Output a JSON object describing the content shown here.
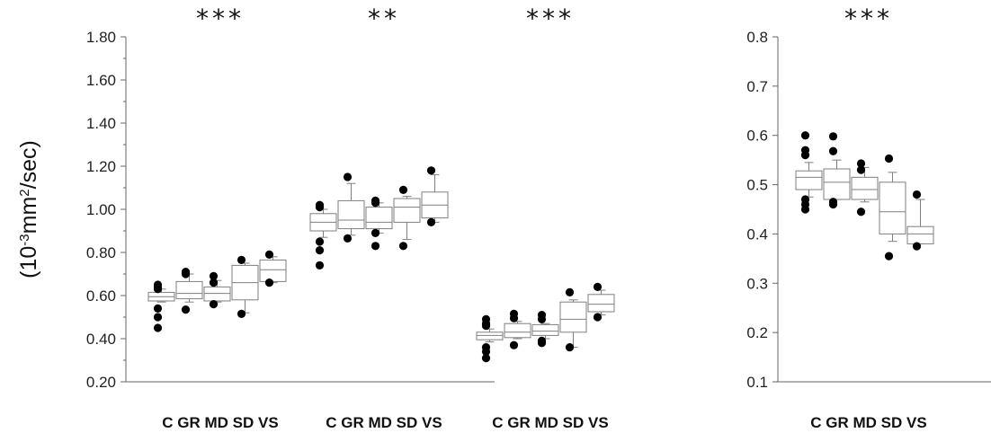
{
  "chart_data": [
    {
      "type": "box",
      "ylabel_parts": [
        "(10",
        "-3",
        "mm",
        "2",
        "/sec)"
      ],
      "ylim": [
        0.2,
        1.8
      ],
      "yticks": [
        "0.20",
        "0.40",
        "0.60",
        "0.80",
        "1.00",
        "1.20",
        "1.40",
        "1.60",
        "1.80"
      ],
      "groups": [
        {
          "label": "C GR MD SD VS",
          "significance": "***",
          "boxes": [
            {
              "min": 0.57,
              "q1": 0.575,
              "median": 0.595,
              "q3": 0.615,
              "max": 0.63,
              "outliers": [
                0.65,
                0.64,
                0.63,
                0.54,
                0.5,
                0.45
              ]
            },
            {
              "min": 0.57,
              "q1": 0.585,
              "median": 0.61,
              "q3": 0.665,
              "max": 0.7,
              "outliers": [
                0.71,
                0.7,
                0.535
              ]
            },
            {
              "min": 0.57,
              "q1": 0.575,
              "median": 0.61,
              "q3": 0.64,
              "max": 0.67,
              "outliers": [
                0.69,
                0.66,
                0.56
              ]
            },
            {
              "min": 0.52,
              "q1": 0.58,
              "median": 0.66,
              "q3": 0.74,
              "max": 0.75,
              "outliers": [
                0.765,
                0.515
              ]
            },
            {
              "min": 0.66,
              "q1": 0.665,
              "median": 0.72,
              "q3": 0.765,
              "max": 0.78,
              "outliers": [
                0.79,
                0.66
              ]
            }
          ]
        },
        {
          "label": "C GR MD SD VS",
          "significance": "**",
          "boxes": [
            {
              "min": 0.87,
              "q1": 0.9,
              "median": 0.94,
              "q3": 0.98,
              "max": 1.0,
              "outliers": [
                1.02,
                1.01,
                0.85,
                0.81,
                0.74
              ]
            },
            {
              "min": 0.88,
              "q1": 0.91,
              "median": 0.95,
              "q3": 1.04,
              "max": 1.12,
              "outliers": [
                1.15,
                0.865
              ]
            },
            {
              "min": 0.89,
              "q1": 0.91,
              "median": 0.94,
              "q3": 1.01,
              "max": 1.03,
              "outliers": [
                1.04,
                1.03,
                0.89,
                0.83
              ]
            },
            {
              "min": 0.86,
              "q1": 0.94,
              "median": 1.01,
              "q3": 1.05,
              "max": 1.06,
              "outliers": [
                1.09,
                0.83
              ]
            },
            {
              "min": 0.94,
              "q1": 0.96,
              "median": 1.02,
              "q3": 1.08,
              "max": 1.16,
              "outliers": [
                1.18,
                0.94
              ]
            }
          ]
        },
        {
          "label": "C GR MD SD VS",
          "significance": "***",
          "boxes": [
            {
              "min": 0.385,
              "q1": 0.395,
              "median": 0.415,
              "q3": 0.43,
              "max": 0.445,
              "outliers": [
                0.49,
                0.47,
                0.46,
                0.36,
                0.34,
                0.31
              ]
            },
            {
              "min": 0.4,
              "q1": 0.405,
              "median": 0.43,
              "q3": 0.47,
              "max": 0.48,
              "outliers": [
                0.515,
                0.495,
                0.37
              ]
            },
            {
              "min": 0.4,
              "q1": 0.415,
              "median": 0.435,
              "q3": 0.465,
              "max": 0.47,
              "outliers": [
                0.51,
                0.49,
                0.39,
                0.38
              ]
            },
            {
              "min": 0.36,
              "q1": 0.43,
              "median": 0.49,
              "q3": 0.57,
              "max": 0.58,
              "outliers": [
                0.615,
                0.36
              ]
            },
            {
              "min": 0.51,
              "q1": 0.525,
              "median": 0.56,
              "q3": 0.605,
              "max": 0.625,
              "outliers": [
                0.64,
                0.5
              ]
            }
          ]
        }
      ]
    },
    {
      "type": "box",
      "ylim": [
        0.1,
        0.8
      ],
      "yticks": [
        "0.1",
        "0.2",
        "0.3",
        "0.4",
        "0.5",
        "0.6",
        "0.7",
        "0.8"
      ],
      "groups": [
        {
          "label": "C  GR MD SD VS",
          "significance": "***",
          "boxes": [
            {
              "min": 0.475,
              "q1": 0.49,
              "median": 0.515,
              "q3": 0.528,
              "max": 0.545,
              "outliers": [
                0.6,
                0.57,
                0.56,
                0.47,
                0.46,
                0.45
              ]
            },
            {
              "min": 0.47,
              "q1": 0.47,
              "median": 0.505,
              "q3": 0.532,
              "max": 0.55,
              "outliers": [
                0.598,
                0.568,
                0.465,
                0.46
              ]
            },
            {
              "min": 0.465,
              "q1": 0.47,
              "median": 0.49,
              "q3": 0.515,
              "max": 0.535,
              "outliers": [
                0.543,
                0.53,
                0.445
              ]
            },
            {
              "min": 0.385,
              "q1": 0.4,
              "median": 0.445,
              "q3": 0.505,
              "max": 0.525,
              "outliers": [
                0.553,
                0.355
              ]
            },
            {
              "min": 0.38,
              "q1": 0.38,
              "median": 0.4,
              "q3": 0.415,
              "max": 0.47,
              "outliers": [
                0.48,
                0.375
              ]
            }
          ]
        }
      ]
    }
  ]
}
